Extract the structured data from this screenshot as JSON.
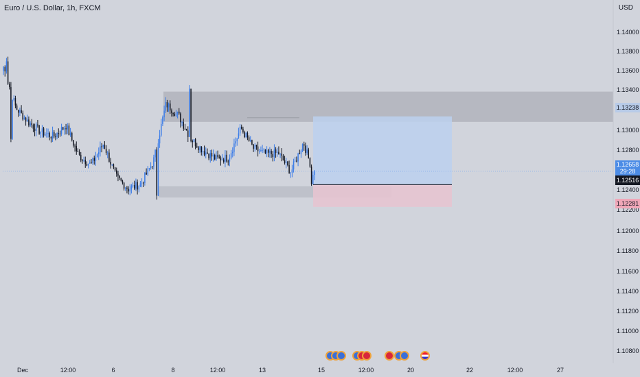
{
  "title": "Euro / U.S. Dollar, 1h, FXCM",
  "currency": "USD",
  "y_ticks": [
    "1.14000",
    "1.13800",
    "1.13600",
    "1.13400",
    "1.13000",
    "1.12800",
    "1.12400",
    "1.12200",
    "1.12000",
    "1.11800",
    "1.11600",
    "1.11400",
    "1.11200",
    "1.11000",
    "1.10800"
  ],
  "x_ticks": [
    "Dec",
    "12:00",
    "6",
    "8",
    "12:00",
    "13",
    "15",
    "12:00",
    "20",
    "22",
    "12:00",
    "27"
  ],
  "price_labels": {
    "target": "1.13238",
    "current": "1.12658",
    "countdown": "29:28",
    "entry": "1.12516",
    "stop": "1.12281"
  },
  "colors": {
    "background": "#d1d4dc",
    "bull": "#3c7de8",
    "bear": "#131722",
    "supply_zone": "#b2b5be",
    "target_zone": "#bcd0ee",
    "stop_zone": "#e6c4d0",
    "demand_zone": "#bdc0c8"
  },
  "chart_data": {
    "type": "candlestick",
    "title": "Euro / U.S. Dollar, 1h, FXCM",
    "ylim": [
      1.107,
      1.1436
    ],
    "close_path": [
      [
        1.137,
        1.1382
      ],
      [
        1.1335,
        1.133
      ],
      [
        1.131,
        1.1325
      ],
      [
        1.132,
        1.1295
      ],
      [
        1.1305,
        1.13
      ],
      [
        1.1308,
        1.132
      ],
      [
        1.1295,
        1.127
      ],
      [
        1.128,
        1.1265
      ],
      [
        1.129,
        1.13
      ],
      [
        1.127,
        1.125
      ],
      [
        1.1262,
        1.1232
      ],
      [
        1.1245,
        1.126
      ],
      [
        1.1283,
        1.127
      ],
      [
        1.1322,
        1.1352
      ],
      [
        1.133,
        1.132
      ],
      [
        1.131,
        1.129
      ],
      [
        1.1295,
        1.128
      ],
      [
        1.1283,
        1.1275
      ],
      [
        1.127,
        1.129
      ],
      [
        1.1318,
        1.1305
      ],
      [
        1.129,
        1.129
      ],
      [
        1.1298,
        1.127
      ],
      [
        1.1285,
        1.1285
      ],
      [
        1.127,
        1.126
      ],
      [
        1.1295,
        1.1298
      ],
      [
        1.1252,
        1.1258
      ]
    ],
    "zones": {
      "supply": [
        1.1318,
        1.135
      ],
      "demand": [
        1.1238,
        1.125
      ],
      "long_target": [
        1.12516,
        1.13238
      ],
      "long_stop": [
        1.12281,
        1.12516
      ]
    },
    "current_price": 1.12658,
    "entry_price": 1.12516
  }
}
